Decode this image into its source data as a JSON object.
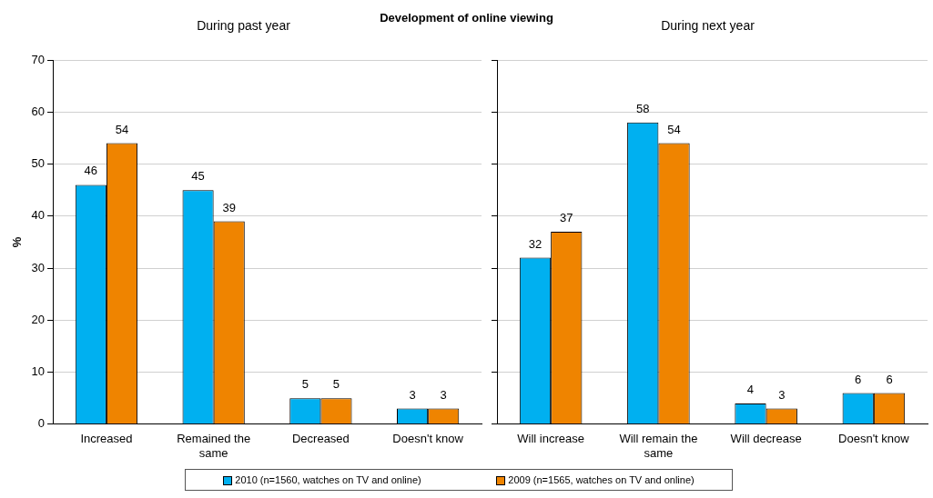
{
  "chart_data": [
    {
      "type": "bar",
      "title": "Development of online viewing",
      "subtitle": "During past year",
      "ylabel": "%",
      "categories": [
        "Increased",
        "Remained the same",
        "Decreased",
        "Doesn't know"
      ],
      "series": [
        {
          "name": "2010 (n=1560, watches on TV and online)",
          "color": "#00b0f0",
          "values": [
            46,
            45,
            5,
            3
          ]
        },
        {
          "name": "2009 (n=1565, watches on TV and online)",
          "color": "#ef8400",
          "values": [
            54,
            39,
            5,
            3
          ]
        }
      ],
      "ylim": [
        0,
        70
      ],
      "yticks": [
        0,
        10,
        20,
        30,
        40,
        50,
        60,
        70
      ],
      "grid": "y",
      "data_labels": true,
      "legend": "bottom"
    },
    {
      "type": "bar",
      "subtitle": "During next year",
      "categories": [
        "Will increase",
        "Will remain the same",
        "Will decrease",
        "Doesn't know"
      ],
      "series": [
        {
          "color": "#00b0f0",
          "values": [
            32,
            58,
            4,
            6
          ]
        },
        {
          "color": "#ef8400",
          "values": [
            37,
            54,
            3,
            6
          ]
        }
      ],
      "ylim": [
        0,
        70
      ],
      "yticks": [
        0,
        10,
        20,
        30,
        40,
        50,
        60,
        70
      ],
      "grid": "y",
      "data_labels": true,
      "tick_labels": "x"
    }
  ]
}
